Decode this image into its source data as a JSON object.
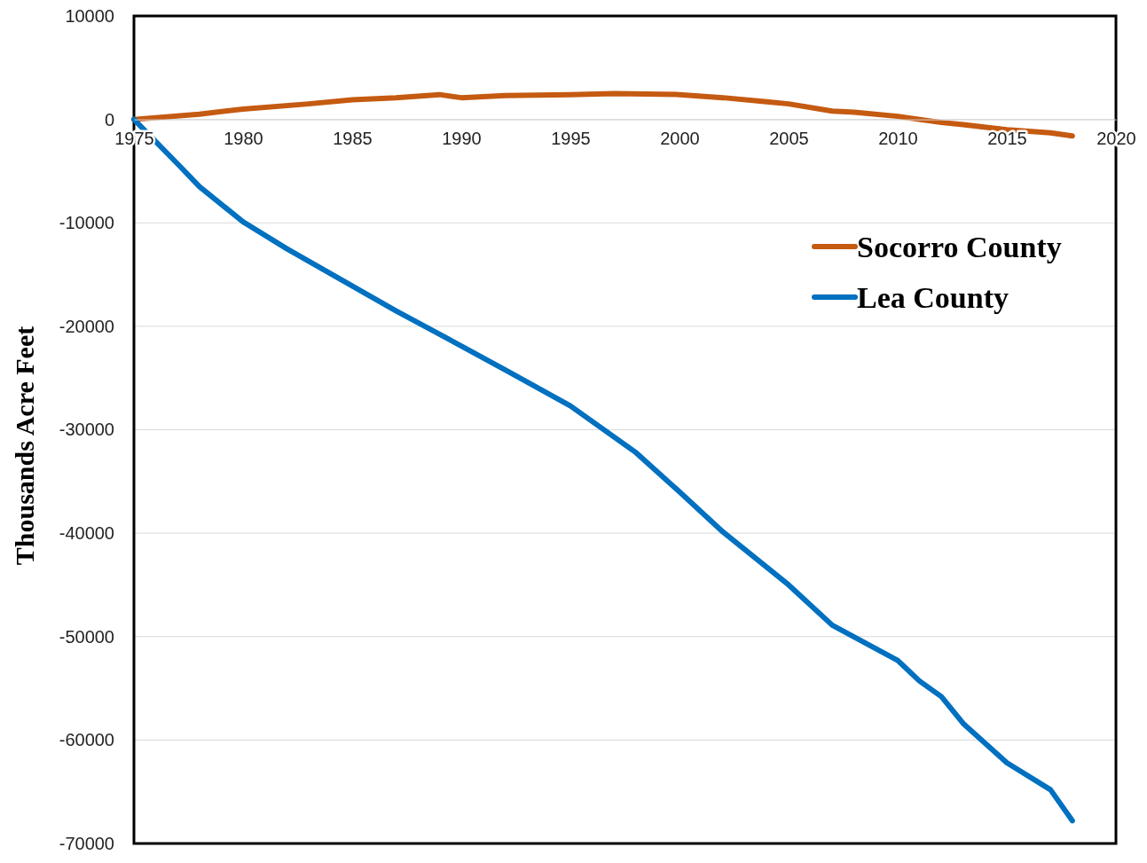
{
  "chart_data": {
    "type": "line",
    "ylabel": "Thousands  Acre Feet",
    "xlim": [
      1975,
      2020
    ],
    "xticks": [
      1975,
      1980,
      1985,
      1990,
      1995,
      2000,
      2005,
      2010,
      2015,
      2020
    ],
    "ylim": [
      -70000,
      10000
    ],
    "yticks": [
      -70000,
      -60000,
      -50000,
      -40000,
      -30000,
      -20000,
      -10000,
      0,
      10000
    ],
    "grid": "y",
    "legend": "top right",
    "line_style": "solid",
    "marker": "none",
    "series": [
      {
        "name": "Socorro County",
        "color": "#c55a11",
        "x": [
          1975,
          1978,
          1980,
          1983,
          1985,
          1987,
          1989,
          1990,
          1992,
          1995,
          1997,
          2000,
          2002,
          2004,
          2005,
          2007,
          2008,
          2010,
          2012,
          2013,
          2015,
          2017,
          2018
        ],
        "values": [
          0,
          500,
          1000,
          1500,
          1900,
          2100,
          2400,
          2100,
          2300,
          2400,
          2500,
          2400,
          2100,
          1700,
          1500,
          800,
          700,
          300,
          -300,
          -500,
          -1000,
          -1300,
          -1600
        ]
      },
      {
        "name": "Lea  County",
        "color": "#0070c0",
        "x": [
          1975,
          1977,
          1978,
          1980,
          1982,
          1984,
          1985,
          1987,
          1990,
          1992,
          1995,
          1998,
          2000,
          2002,
          2005,
          2007,
          2010,
          2011,
          2012,
          2013,
          2015,
          2017,
          2018
        ],
        "values": [
          0,
          -4300,
          -6500,
          -9900,
          -12500,
          -14900,
          -16100,
          -18500,
          -21900,
          -24200,
          -27700,
          -32200,
          -36000,
          -39900,
          -45000,
          -48900,
          -52300,
          -54300,
          -55800,
          -58400,
          -62200,
          -64800,
          -67800
        ]
      }
    ]
  }
}
